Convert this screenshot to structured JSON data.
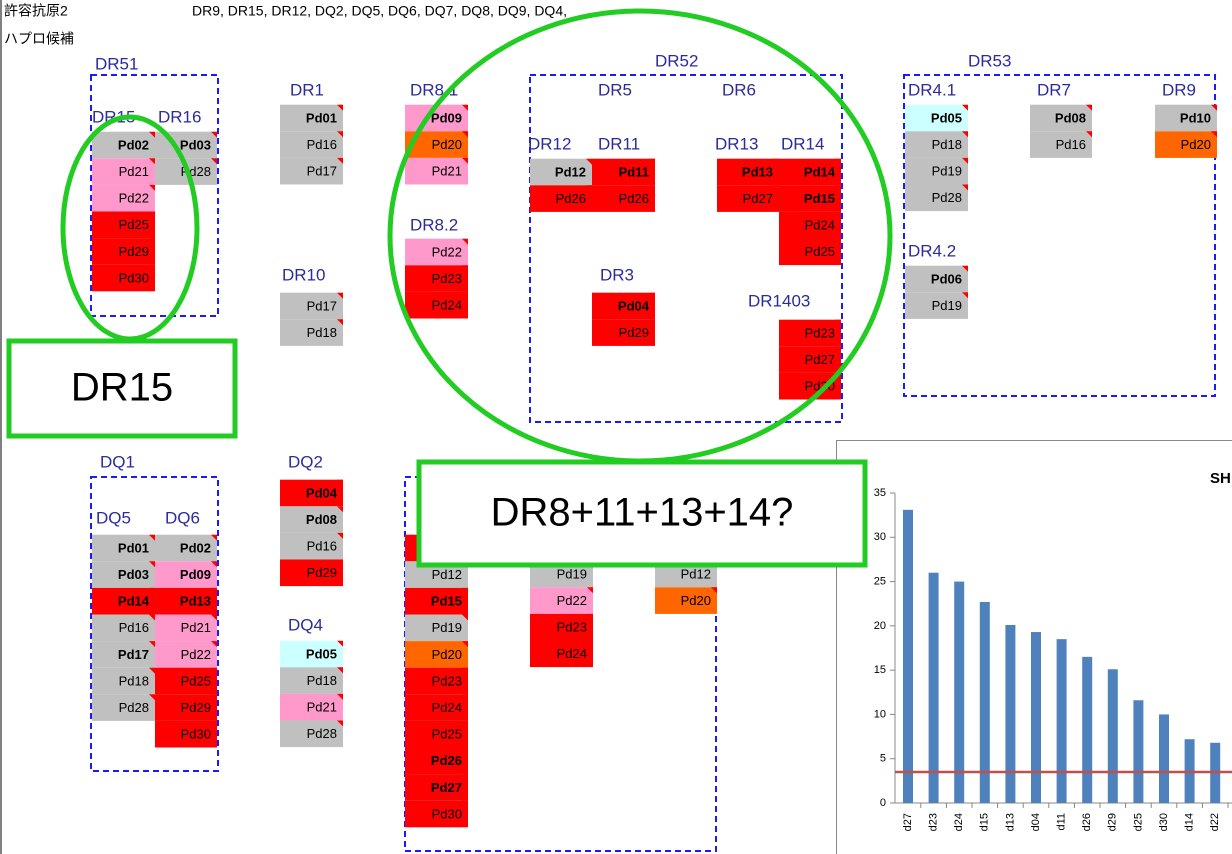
{
  "header": {
    "allowed_label": "許容抗原2",
    "allowed_value": "DR9, DR15, DR12, DQ2, DQ5, DQ6, DQ7, DQ8, DQ9, DQ4,",
    "haplo_label": "ハプロ候補"
  },
  "labels": [
    "DR51",
    "DR15",
    "DR16",
    "DR1",
    "DR8.1",
    "DR52",
    "DR5",
    "DR6",
    "DR12",
    "DR11",
    "DR13",
    "DR14",
    "DR8.2",
    "DR10",
    "DR3",
    "DR1403",
    "DR53",
    "DR4.1",
    "DR7",
    "DR9",
    "DR4.2",
    "DQ1",
    "DQ5",
    "DQ6",
    "DQ2",
    "DQ4"
  ],
  "columns": [
    {
      "cells": [
        {
          "text": "Pd02",
          "color": "#c0c0c0",
          "bold": true
        },
        {
          "text": "Pd21",
          "color": "#ff99cc",
          "bold": false
        },
        {
          "text": "Pd22",
          "color": "#ff99cc",
          "bold": false
        },
        {
          "text": "Pd25",
          "color": "#ff0000",
          "bold": false
        },
        {
          "text": "Pd29",
          "color": "#ff0000",
          "bold": false
        },
        {
          "text": "Pd30",
          "color": "#ff0000",
          "bold": false
        }
      ]
    },
    {
      "cells": [
        {
          "text": "Pd03",
          "color": "#c0c0c0",
          "bold": true
        },
        {
          "text": "Pd28",
          "color": "#c0c0c0",
          "bold": false
        }
      ]
    },
    {
      "cells": [
        {
          "text": "Pd01",
          "color": "#c0c0c0",
          "bold": true
        },
        {
          "text": "Pd16",
          "color": "#c0c0c0",
          "bold": false
        },
        {
          "text": "Pd17",
          "color": "#c0c0c0",
          "bold": false
        }
      ]
    },
    {
      "cells": [
        {
          "text": "Pd09",
          "color": "#ff99cc",
          "bold": true
        },
        {
          "text": "Pd20",
          "color": "#ff6600",
          "bold": false
        },
        {
          "text": "Pd21",
          "color": "#ff99cc",
          "bold": false
        }
      ]
    },
    {
      "cells": [
        {
          "text": "Pd22",
          "color": "#ff99cc",
          "bold": false
        },
        {
          "text": "Pd23",
          "color": "#ff0000",
          "bold": false
        },
        {
          "text": "Pd24",
          "color": "#ff0000",
          "bold": false
        }
      ]
    },
    {
      "cells": [
        {
          "text": "Pd17",
          "color": "#c0c0c0",
          "bold": false
        },
        {
          "text": "Pd18",
          "color": "#c0c0c0",
          "bold": false
        }
      ]
    },
    {
      "cells": [
        {
          "text": "Pd12",
          "color": "#c0c0c0",
          "bold": true
        },
        {
          "text": "Pd26",
          "color": "#ff0000",
          "bold": false
        }
      ]
    },
    {
      "cells": [
        {
          "text": "Pd11",
          "color": "#ff0000",
          "bold": true
        },
        {
          "text": "Pd26",
          "color": "#ff0000",
          "bold": false
        }
      ]
    },
    {
      "cells": [
        {
          "text": "Pd13",
          "color": "#ff0000",
          "bold": true
        },
        {
          "text": "Pd27",
          "color": "#ff0000",
          "bold": false
        }
      ]
    },
    {
      "cells": [
        {
          "text": "Pd14",
          "color": "#ff0000",
          "bold": true
        },
        {
          "text": "Pd15",
          "color": "#ff0000",
          "bold": true
        },
        {
          "text": "Pd24",
          "color": "#ff0000",
          "bold": false
        },
        {
          "text": "Pd25",
          "color": "#ff0000",
          "bold": false
        }
      ]
    },
    {
      "cells": [
        {
          "text": "Pd04",
          "color": "#ff0000",
          "bold": true
        },
        {
          "text": "Pd29",
          "color": "#ff0000",
          "bold": false
        }
      ]
    },
    {
      "cells": [
        {
          "text": "Pd23",
          "color": "#ff0000",
          "bold": false
        },
        {
          "text": "Pd27",
          "color": "#ff0000",
          "bold": false
        },
        {
          "text": "Pd30",
          "color": "#ff0000",
          "bold": false
        }
      ]
    },
    {
      "cells": [
        {
          "text": "Pd05",
          "color": "#ccffff",
          "bold": true
        },
        {
          "text": "Pd18",
          "color": "#c0c0c0",
          "bold": false
        },
        {
          "text": "Pd19",
          "color": "#c0c0c0",
          "bold": false
        },
        {
          "text": "Pd28",
          "color": "#c0c0c0",
          "bold": false
        }
      ]
    },
    {
      "cells": [
        {
          "text": "Pd08",
          "color": "#c0c0c0",
          "bold": true
        },
        {
          "text": "Pd16",
          "color": "#c0c0c0",
          "bold": false
        }
      ]
    },
    {
      "cells": [
        {
          "text": "Pd10",
          "color": "#c0c0c0",
          "bold": true
        },
        {
          "text": "Pd20",
          "color": "#ff6600",
          "bold": false
        }
      ]
    },
    {
      "cells": [
        {
          "text": "Pd06",
          "color": "#c0c0c0",
          "bold": true
        },
        {
          "text": "Pd19",
          "color": "#c0c0c0",
          "bold": false
        }
      ]
    },
    {
      "cells": [
        {
          "text": "Pd01",
          "color": "#c0c0c0",
          "bold": true
        },
        {
          "text": "Pd03",
          "color": "#c0c0c0",
          "bold": true
        },
        {
          "text": "Pd14",
          "color": "#ff0000",
          "bold": true
        },
        {
          "text": "Pd16",
          "color": "#c0c0c0",
          "bold": false
        },
        {
          "text": "Pd17",
          "color": "#c0c0c0",
          "bold": true
        },
        {
          "text": "Pd18",
          "color": "#c0c0c0",
          "bold": false
        },
        {
          "text": "Pd28",
          "color": "#c0c0c0",
          "bold": false
        }
      ]
    },
    {
      "cells": [
        {
          "text": "Pd02",
          "color": "#c0c0c0",
          "bold": true
        },
        {
          "text": "Pd09",
          "color": "#ff99cc",
          "bold": true
        },
        {
          "text": "Pd13",
          "color": "#ff0000",
          "bold": true
        },
        {
          "text": "Pd21",
          "color": "#ff99cc",
          "bold": false
        },
        {
          "text": "Pd22",
          "color": "#ff99cc",
          "bold": false
        },
        {
          "text": "Pd25",
          "color": "#ff0000",
          "bold": false
        },
        {
          "text": "Pd29",
          "color": "#ff0000",
          "bold": false
        },
        {
          "text": "Pd30",
          "color": "#ff0000",
          "bold": false
        }
      ]
    },
    {
      "cells": [
        {
          "text": "Pd04",
          "color": "#ff0000",
          "bold": true
        },
        {
          "text": "Pd08",
          "color": "#c0c0c0",
          "bold": true
        },
        {
          "text": "Pd16",
          "color": "#c0c0c0",
          "bold": false
        },
        {
          "text": "Pd29",
          "color": "#ff0000",
          "bold": false
        }
      ]
    },
    {
      "cells": [
        {
          "text": "Pd05",
          "color": "#ccffff",
          "bold": true
        },
        {
          "text": "Pd18",
          "color": "#c0c0c0",
          "bold": false
        },
        {
          "text": "Pd21",
          "color": "#ff99cc",
          "bold": false
        },
        {
          "text": "Pd28",
          "color": "#c0c0c0",
          "bold": false
        }
      ]
    },
    {
      "cells": [
        {
          "color": "#ff0000",
          "bold": false
        },
        {
          "text": "Pd12",
          "color": "#c0c0c0",
          "bold": false
        },
        {
          "text": "Pd15",
          "color": "#ff0000",
          "bold": true
        },
        {
          "text": "Pd19",
          "color": "#c0c0c0",
          "bold": false
        },
        {
          "text": "Pd20",
          "color": "#ff6600",
          "bold": false
        },
        {
          "text": "Pd23",
          "color": "#ff0000",
          "bold": false
        },
        {
          "text": "Pd24",
          "color": "#ff0000",
          "bold": false
        },
        {
          "text": "Pd25",
          "color": "#ff0000",
          "bold": false
        },
        {
          "text": "Pd26",
          "color": "#ff0000",
          "bold": true
        },
        {
          "text": "Pd27",
          "color": "#ff0000",
          "bold": true
        },
        {
          "text": "Pd30",
          "color": "#ff0000",
          "bold": false
        }
      ]
    },
    {
      "cells": [
        {
          "text": "Pd19",
          "color": "#c0c0c0",
          "bold": false
        },
        {
          "text": "Pd22",
          "color": "#ff99cc",
          "bold": false
        },
        {
          "text": "Pd23",
          "color": "#ff0000",
          "bold": false
        },
        {
          "text": "Pd24",
          "color": "#ff0000",
          "bold": false
        }
      ]
    },
    {
      "cells": [
        {
          "text": "Pd12",
          "color": "#c0c0c0",
          "bold": false
        },
        {
          "text": "Pd20",
          "color": "#ff6600",
          "bold": false
        }
      ]
    }
  ],
  "annotations": [
    "DR15",
    "DR8+11+13+14?"
  ],
  "chart_data": {
    "type": "bar",
    "title": "SH",
    "categories": [
      "d27",
      "d23",
      "d24",
      "d15",
      "d13",
      "d04",
      "d11",
      "d26",
      "d29",
      "d25",
      "d30",
      "d14",
      "d22"
    ],
    "series": [
      {
        "color": "#4f81bd",
        "values": [
          33.1,
          26,
          25,
          22.7,
          20.1,
          19.3,
          18.5,
          16.5,
          15.1,
          11.6,
          10,
          7.2,
          6.8
        ]
      }
    ],
    "reference_line": {
      "value": 3.5,
      "color": "#c0504d"
    },
    "ylim": [
      0,
      35
    ],
    "yticks": [
      0,
      5,
      10,
      15,
      20,
      25,
      30,
      35
    ]
  }
}
